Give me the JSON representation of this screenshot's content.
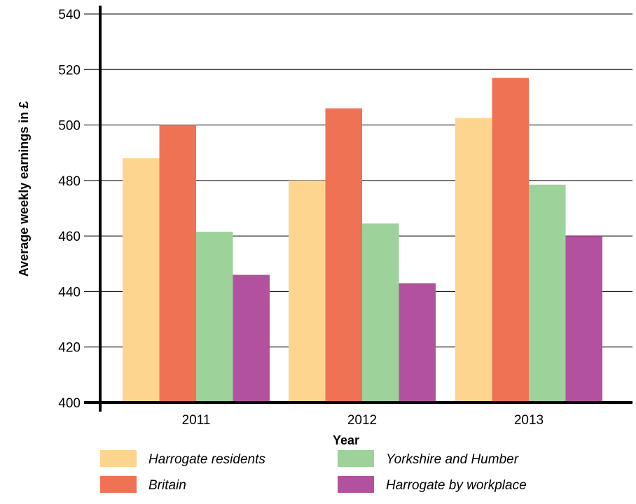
{
  "chart_data": {
    "type": "bar",
    "categories": [
      "2011",
      "2012",
      "2013"
    ],
    "series": [
      {
        "name": "Harrogate residents",
        "color": "#fdd58e",
        "values": [
          488,
          480,
          502.5
        ]
      },
      {
        "name": "Britain",
        "color": "#f07255",
        "values": [
          500,
          506,
          517
        ]
      },
      {
        "name": "Yorkshire and Humber",
        "color": "#9dd29b",
        "values": [
          461.5,
          464.5,
          478.5
        ]
      },
      {
        "name": "Harrogate by workplace",
        "color": "#b2529f",
        "values": [
          446,
          443,
          460
        ]
      }
    ],
    "xlabel": "Year",
    "ylabel": "Average weekly earnings in £",
    "ylim": [
      400,
      540
    ],
    "yticks": [
      400,
      420,
      440,
      460,
      480,
      500,
      520,
      540
    ],
    "grid": true,
    "legend_position": "bottom"
  }
}
